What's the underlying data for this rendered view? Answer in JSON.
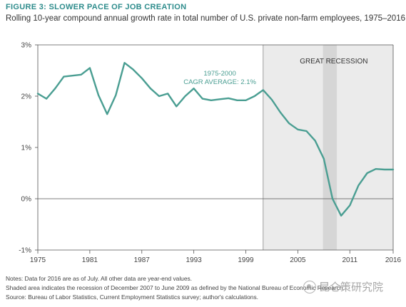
{
  "figure": {
    "title": "FIGURE 3: SLOWER PACE OF JOB CREATION",
    "subtitle": "Rolling 10-year compound annual growth rate in total number of U.S. private non-farm employees, 1975–2016"
  },
  "notes": [
    "Notes: Data for 2016 are as of July. All other data are year-end values.",
    "Shaded area indicates the recession of December 2007 to June 2009 as defined by the National Bureau of Economic Research.",
    "Source: Bureau of Labor Statistics, Current Employment Statistics survey; author's calculations."
  ],
  "watermark": {
    "text": "昆仑策研究院"
  },
  "colors": {
    "line": "#4a9e92",
    "shade_light": "#ebebeb",
    "shade_dark": "#d6d6d6",
    "axis": "#555555",
    "annotation": "#4a9e92",
    "title": "#2e8c8c"
  },
  "chart_data": {
    "type": "line",
    "title": "FIGURE 3: SLOWER PACE OF JOB CREATION",
    "subtitle": "Rolling 10-year compound annual growth rate in total number of U.S. private non-farm employees, 1975–2016",
    "xlabel": "",
    "ylabel": "",
    "xlim": [
      1975,
      2016
    ],
    "ylim": [
      -1,
      3
    ],
    "x_ticks": [
      1975,
      1981,
      1987,
      1993,
      1999,
      2005,
      2011,
      2016
    ],
    "y_ticks": [
      {
        "value": 3,
        "label": "3%"
      },
      {
        "value": 2,
        "label": "2%"
      },
      {
        "value": 1,
        "label": "1%"
      },
      {
        "value": 0,
        "label": "0%"
      },
      {
        "value": -1,
        "label": "-1%"
      }
    ],
    "grid": false,
    "zero_line": true,
    "series": [
      {
        "x": [
          1975,
          1976,
          1977,
          1978,
          1979,
          1980,
          1981,
          1982,
          1983,
          1984,
          1985,
          1986,
          1987,
          1988,
          1989,
          1990,
          1991,
          1992,
          1993,
          1994,
          1995,
          1996,
          1997,
          1998,
          1999,
          2000,
          2001,
          2002,
          2003,
          2004,
          2005,
          2006,
          2007,
          2008,
          2009,
          2010,
          2011,
          2012,
          2013,
          2014,
          2015,
          2016
        ],
        "y": [
          2.05,
          1.95,
          2.15,
          2.38,
          2.4,
          2.42,
          2.55,
          2.02,
          1.65,
          2.02,
          2.65,
          2.52,
          2.35,
          2.15,
          2.0,
          2.05,
          1.8,
          2.0,
          2.15,
          1.95,
          1.92,
          1.94,
          1.96,
          1.92,
          1.92,
          2.0,
          2.12,
          1.93,
          1.68,
          1.47,
          1.35,
          1.32,
          1.13,
          0.78,
          0.0,
          -0.33,
          -0.13,
          0.26,
          0.5,
          0.58,
          0.57,
          0.57
        ]
      }
    ],
    "shaded_regions": [
      {
        "from": 2001,
        "to": 2016,
        "label": "GREAT RECESSION"
      },
      {
        "from": 2007.9,
        "to": 2009.5,
        "label": ""
      }
    ],
    "annotations": [
      {
        "x": 1996,
        "y": 2.4,
        "lines": [
          "1975-2000",
          "CAGR AVERAGE: 2.1%"
        ]
      }
    ]
  }
}
